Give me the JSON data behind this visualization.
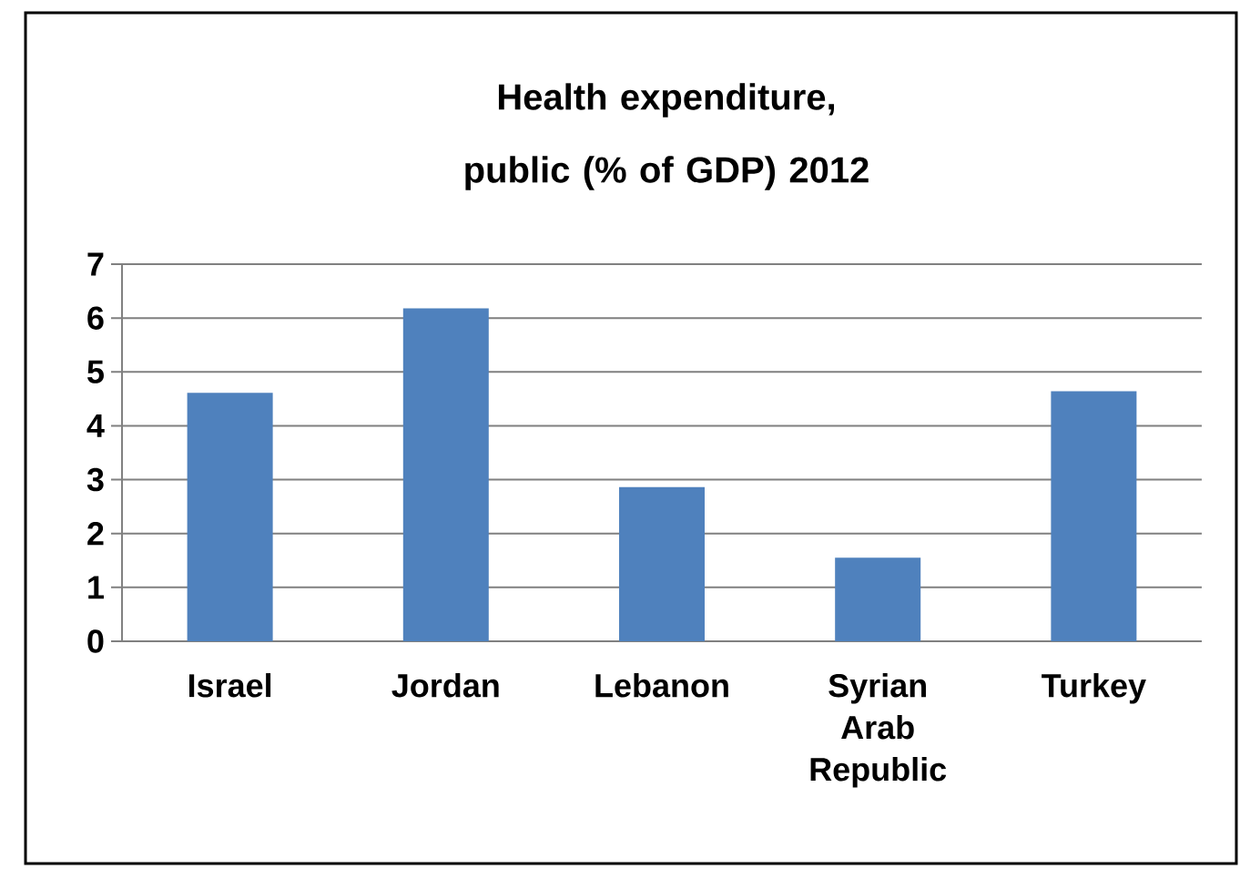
{
  "chart_data": {
    "type": "bar",
    "title": "Health expenditure, public (% of GDP) 2012",
    "categories": [
      "Israel",
      "Jordan",
      "Lebanon",
      "Syrian Arab Republic",
      "Turkey"
    ],
    "values": [
      4.61,
      6.18,
      2.86,
      1.55,
      4.64
    ],
    "color": "#4f81bd",
    "ylim": [
      0,
      7
    ],
    "yticks": [
      0,
      1,
      2,
      3,
      4,
      5,
      6,
      7
    ],
    "grid": "y"
  }
}
